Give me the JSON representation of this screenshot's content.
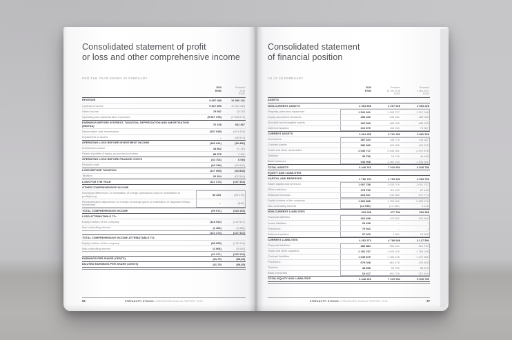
{
  "footer": {
    "brand": "STEFANUTTI STOCKS",
    "report": "INTEGRATED ANNUAL REPORT 2019"
  },
  "left_page": {
    "title_line1": "Consolidated statement of profit",
    "title_line2": "or loss and other comprehensive income",
    "subtitle": "FOR THE YEAR ENDED 28 FEBRUARY",
    "page_number": "66",
    "columns": [
      [
        "2019",
        "R'000"
      ],
      [
        "Restated",
        "2018",
        "R'000"
      ]
    ],
    "rows": [
      {
        "label": "REVENUE",
        "values": [
          "9 897 486",
          "10 380 141"
        ],
        "style": "section"
      },
      {
        "label": "Contract revenue",
        "values": [
          "9 817 899",
          "10 361 863"
        ],
        "style": "item"
      },
      {
        "label": "Other income",
        "values": [
          "79 587",
          "18 278"
        ],
        "style": "item"
      },
      {
        "label": "Operating and administrative expenses",
        "values": [
          "(9 827 378)",
          "(9 998 674)"
        ],
        "style": "item"
      },
      {
        "label": "EARNINGS BEFORE INTEREST, TAXATION, DEPRECIATION AND AMORTISATION (EBITDA)",
        "values": [
          "70 108",
          "381 467"
        ],
        "style": "section"
      },
      {
        "label": "Depreciation and amortisation",
        "values": [
          "(257 049)",
          "(324 403)"
        ],
        "style": "item"
      },
      {
        "label": "Impairment of assets",
        "values": [
          "–",
          "(96 514)"
        ],
        "style": "item"
      },
      {
        "label": "OPERATING LOSS BEFORE INVESTMENT INCOME",
        "values": [
          "(186 941)",
          "(39 450)"
        ],
        "style": "section"
      },
      {
        "label": "Investment income",
        "values": [
          "43 862",
          "41 163"
        ],
        "style": "item"
      },
      {
        "label": "Share of profits of equity-accounted investees",
        "values": [
          "88 375",
          "4 381"
        ],
        "style": "item"
      },
      {
        "label": "OPERATING LOSS BEFORE FINANCE COSTS",
        "values": [
          "(54 704)",
          "6 094"
        ],
        "style": "section"
      },
      {
        "label": "Finance costs",
        "values": [
          "(93 194)",
          "(90 942)"
        ],
        "style": "item"
      },
      {
        "label": "LOSS BEFORE TAXATION",
        "values": [
          "(147 898)",
          "(84 848)"
        ],
        "style": "section"
      },
      {
        "label": "Taxation",
        "values": [
          "26 524",
          "(62 584)"
        ],
        "style": "item"
      },
      {
        "label": "LOSS FOR THE YEAR",
        "values": [
          "(121 374)",
          "(147 432)"
        ],
        "style": "section"
      },
      {
        "label": "OTHER COMPREHENSIVE INCOME",
        "values": [
          "",
          ""
        ],
        "style": "section"
      },
      {
        "label": "Exchange differences on translation of foreign operations (may be reclassified to profit/(loss))",
        "values": [
          "30 403",
          "(35 075)"
        ],
        "style": "item",
        "box": "start"
      },
      {
        "label": "Reclassification adjustment for foreign exchange gains on translation of disposed foreign investment",
        "values": [
          "–",
          "(645)"
        ],
        "style": "item",
        "box": "end"
      },
      {
        "label": "TOTAL COMPREHENSIVE INCOME",
        "values": [
          "(90 971)",
          "(183 152)"
        ],
        "style": "section"
      },
      {
        "label": "LOSS ATTRIBUTABLE TO:",
        "values": [
          "",
          ""
        ],
        "style": "section"
      },
      {
        "label": "Equity holders of the company",
        "values": [
          "(118 912)",
          "(142 947)"
        ],
        "style": "item"
      },
      {
        "label": "Non-controlling interest",
        "values": [
          "(2 462)",
          "(4 485)"
        ],
        "style": "item"
      },
      {
        "label": "",
        "values": [
          "(121 374)",
          "(147 432)"
        ],
        "style": "total"
      },
      {
        "label": "TOTAL COMPREHENSIVE INCOME ATTRIBUTABLE TO:",
        "values": [
          "",
          ""
        ],
        "style": "section"
      },
      {
        "label": "Equity holders of the company",
        "values": [
          "(88 065)",
          "(178 104)"
        ],
        "style": "item"
      },
      {
        "label": "Non-controlling interest",
        "values": [
          "(2 906)",
          "(5 048)"
        ],
        "style": "item"
      },
      {
        "label": "",
        "values": [
          "(90 971)",
          "(183 152)"
        ],
        "style": "total"
      },
      {
        "label": "EARNINGS PER SHARE (CENTS)",
        "values": [
          "(81,79)",
          "(85,45)"
        ],
        "style": "section"
      },
      {
        "label": "DILUTED EARNINGS PER SHARE (CENTS)",
        "values": [
          "(81,79)",
          "(85,45)"
        ],
        "style": "section last"
      }
    ]
  },
  "right_page": {
    "title_line1": "Consolidated statement",
    "title_line2": "of financial position",
    "subtitle": "AS AT 28 FEBRUARY",
    "page_number": "67",
    "columns": [
      [
        "2019",
        "R'000"
      ],
      [
        "Restated",
        "28 Feb 2018",
        "R'000"
      ],
      [
        "Restated",
        "1 Mar 2017",
        "R'000"
      ]
    ],
    "rows": [
      {
        "label": "ASSETS",
        "values": [
          "",
          "",
          ""
        ],
        "style": "section"
      },
      {
        "label": "NON-CURRENT ASSETS",
        "values": [
          "2 453 808",
          "2 257 628",
          "2 563 228"
        ],
        "style": "section"
      },
      {
        "label": "Property, plant and equipment",
        "values": [
          "1 541 941",
          "1 403 727",
          "1 217 248"
        ],
        "style": "item",
        "box": "start"
      },
      {
        "label": "Equity-accounted investees",
        "values": [
          "296 440",
          "230 181",
          "285 068"
        ],
        "style": "item",
        "box": "mid"
      },
      {
        "label": "Goodwill and intangible assets",
        "values": [
          "402 548",
          "489 456",
          "986 525"
        ],
        "style": "item",
        "box": "mid"
      },
      {
        "label": "Deferred taxation",
        "values": [
          "212 879",
          "134 264",
          "74 387"
        ],
        "style": "item",
        "box": "end"
      },
      {
        "label": "CURRENT ASSETS",
        "values": [
          "3 994 455",
          "4 762 306",
          "3 982 528"
        ],
        "style": "section"
      },
      {
        "label": "Inventories",
        "values": [
          "387 634",
          "146 276",
          "145 387"
        ],
        "style": "item",
        "box": "start"
      },
      {
        "label": "Contract assets",
        "values": [
          "586 380",
          "490 865",
          "404 525"
        ],
        "style": "item",
        "box": "mid"
      },
      {
        "label": "Trade and other receivables",
        "values": [
          "2 040 717",
          "2 646 061",
          "2 047 878"
        ],
        "style": "item",
        "box": "mid"
      },
      {
        "label": "Taxation",
        "values": [
          "38 756",
          "18 769",
          "49 436"
        ],
        "style": "item",
        "box": "mid"
      },
      {
        "label": "Bank balances",
        "values": [
          "940 968",
          "1 460 335",
          "1 335 302"
        ],
        "style": "item",
        "box": "end"
      },
      {
        "label": "TOTAL ASSETS",
        "values": [
          "6 448 263",
          "7 019 934",
          "6 545 756"
        ],
        "style": "section"
      },
      {
        "label": "EQUITY AND LIABILITIES",
        "values": [
          "",
          "",
          ""
        ],
        "style": "section"
      },
      {
        "label": "CAPITAL AND RESERVES",
        "values": [
          "1 786 792",
          "1 753 232",
          "2 063 794"
        ],
        "style": "section"
      },
      {
        "label": "Share capital and premium",
        "values": [
          "1 007 758",
          "1 003 079",
          "1 001 757"
        ],
        "style": "item",
        "box": "start"
      },
      {
        "label": "Other reserves",
        "values": [
          "178 790",
          "110 430",
          "87 145"
        ],
        "style": "item",
        "box": "mid"
      },
      {
        "label": "Retained earnings",
        "values": [
          "614 337",
          "649 883",
          "970 774"
        ],
        "style": "item",
        "box": "end"
      },
      {
        "label": "Equity holders of the company",
        "values": [
          "1 800 885",
          "1 763 392",
          "2 059 676"
        ],
        "style": "item",
        "box": "start"
      },
      {
        "label": "Non-controlling interest",
        "values": [
          "(14 093)",
          "(10 160)",
          "4 118"
        ],
        "style": "item",
        "box": "end"
      },
      {
        "label": "NON-CURRENT LIABILITIES",
        "values": [
          "409 098",
          "477 754",
          "354 368"
        ],
        "style": "section"
      },
      {
        "label": "Financial liabilities",
        "values": [
          "262 698",
          "475 853",
          "340 460"
        ],
        "style": "item",
        "box": "start"
      },
      {
        "label": "Lease liabilities",
        "values": [
          "29 038",
          "–",
          "–"
        ],
        "style": "item",
        "box": "mid"
      },
      {
        "label": "Provisions",
        "values": [
          "79 942",
          "–",
          "–"
        ],
        "style": "item",
        "box": "mid"
      },
      {
        "label": "Deferred taxation",
        "values": [
          "37 420",
          "1 901",
          "13 908"
        ],
        "style": "item",
        "box": "end"
      },
      {
        "label": "CURRENT LIABILITIES",
        "values": [
          "4 252 373",
          "4 788 948",
          "4 127 594"
        ],
        "style": "section"
      },
      {
        "label": "Financial liabilities",
        "values": [
          "282 884",
          "259 441",
          "321 754"
        ],
        "style": "item",
        "box": "start"
      },
      {
        "label": "Trade and other payables",
        "values": [
          "2 181 787",
          "1 842 425",
          "1 763 248"
        ],
        "style": "item",
        "box": "mid"
      },
      {
        "label": "Contract liabilities",
        "values": [
          "1 049 879",
          "1 180 478",
          "1 237 865"
        ],
        "style": "item",
        "box": "mid"
      },
      {
        "label": "Provisions",
        "values": [
          "679 048",
          "861 478",
          "430 408"
        ],
        "style": "item",
        "box": "mid"
      },
      {
        "label": "Taxation",
        "values": [
          "48 358",
          "53 750",
          "56 875"
        ],
        "style": "item",
        "box": "mid"
      },
      {
        "label": "Bank overdrafts",
        "values": [
          "10 417",
          "591 376",
          "317 444"
        ],
        "style": "item",
        "box": "end"
      },
      {
        "label": "TOTAL EQUITY AND LIABILITIES",
        "values": [
          "6 448 263",
          "7 019 934",
          "6 545 756"
        ],
        "style": "section last"
      }
    ]
  }
}
